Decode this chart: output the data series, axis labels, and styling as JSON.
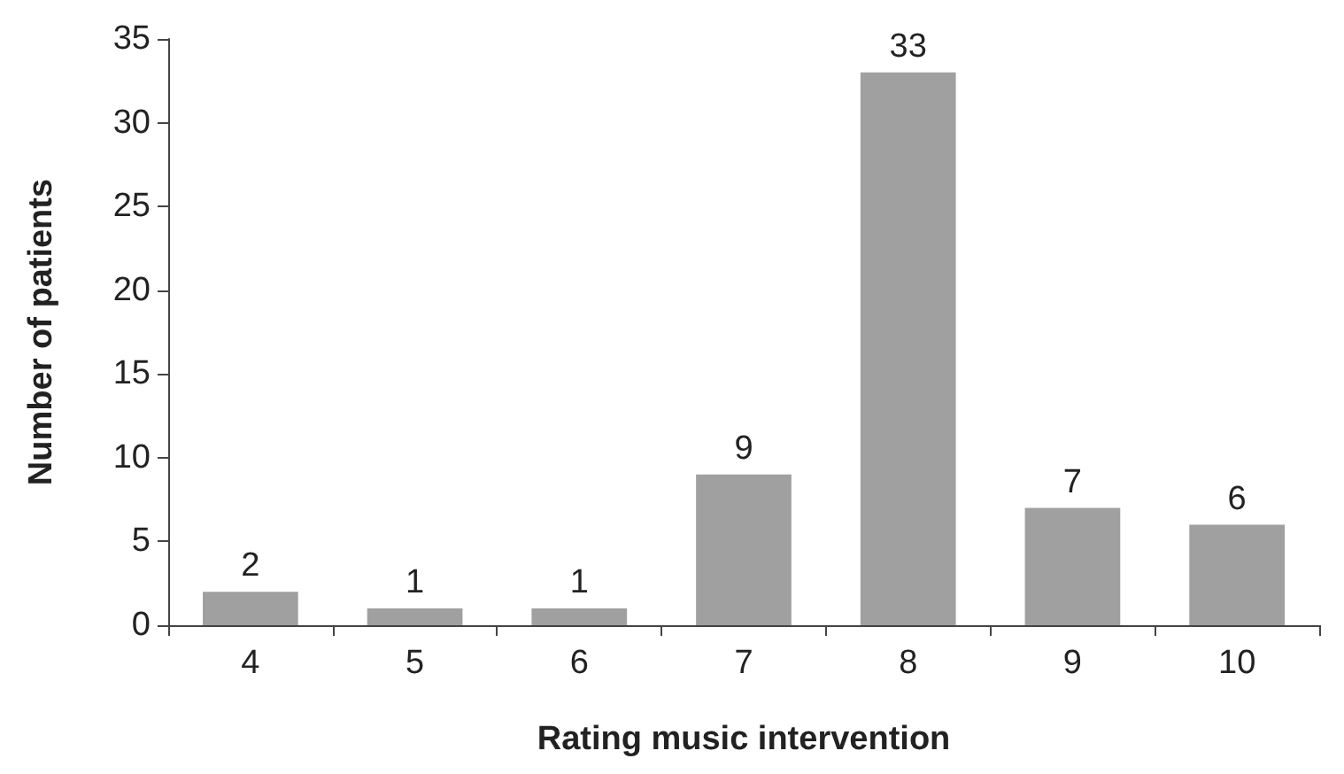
{
  "chart_data": {
    "type": "bar",
    "xlabel": "Rating music intervention",
    "ylabel": "Number of patients",
    "categories": [
      "4",
      "5",
      "6",
      "7",
      "8",
      "9",
      "10"
    ],
    "values": [
      2,
      1,
      1,
      9,
      33,
      7,
      6
    ],
    "color": "#a0a0a0",
    "ylim": [
      0,
      35
    ],
    "yticks": [
      0,
      5,
      10,
      15,
      20,
      25,
      30,
      35
    ],
    "grid": false,
    "data_labels": true
  }
}
